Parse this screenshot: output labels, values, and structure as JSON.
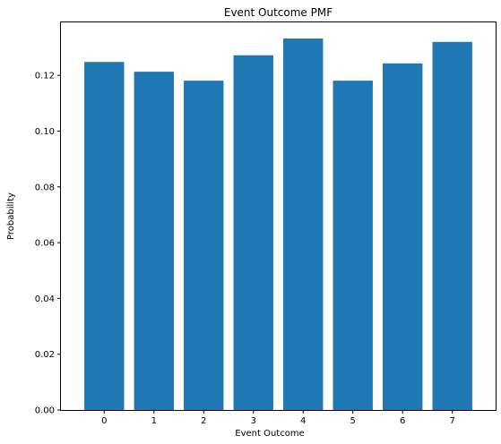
{
  "chart_data": {
    "type": "bar",
    "title": "Event Outcome PMF",
    "xlabel": "Event Outcome",
    "ylabel": "Probability",
    "categories": [
      "0",
      "1",
      "2",
      "3",
      "4",
      "5",
      "6",
      "7"
    ],
    "values": [
      0.1248,
      0.1213,
      0.1181,
      0.1272,
      0.1332,
      0.1181,
      0.1243,
      0.132
    ],
    "ylim": [
      0,
      0.139
    ],
    "yticks": [
      0.0,
      0.02,
      0.04,
      0.06,
      0.08,
      0.1,
      0.12
    ],
    "ytick_labels": [
      "0.00",
      "0.02",
      "0.04",
      "0.06",
      "0.08",
      "0.10",
      "0.12"
    ],
    "bar_color": "#1f77b4",
    "grid": false,
    "legend": "none"
  }
}
